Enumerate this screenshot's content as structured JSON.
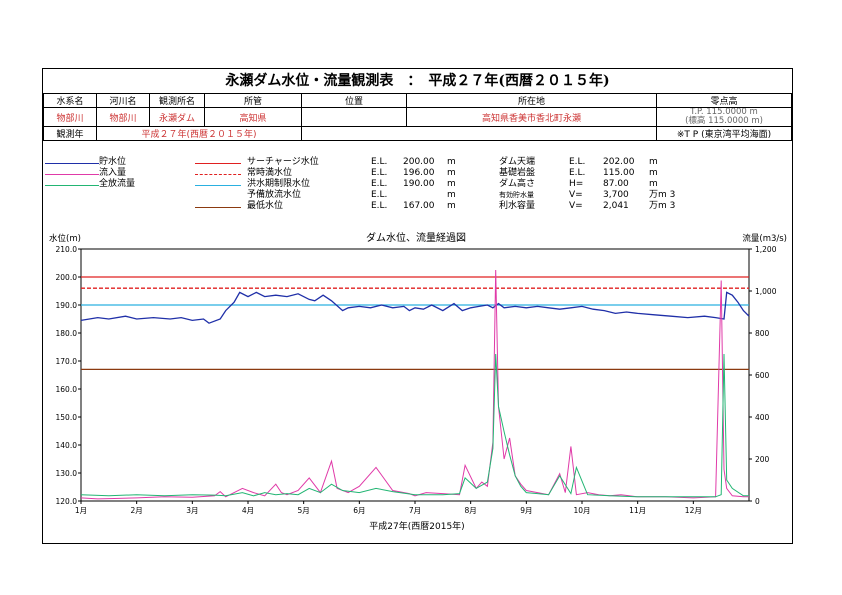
{
  "title": "永瀬ダム水位・流量観測表　：　平成２７年(西暦２０１５年)",
  "header": {
    "col_labels": [
      "水系名",
      "河川名",
      "観測所名",
      "所管",
      "位置",
      "所在地",
      "零点高"
    ],
    "values": [
      "物部川",
      "物部川",
      "永瀬ダム",
      "高知県",
      "",
      "高知県香美市香北町永瀬"
    ],
    "zero_line1": "T.P. 115.0000 m",
    "zero_line2": "(標高 115.0000 m)",
    "year_label": "観測年",
    "year_value": "平成２７年(西暦２０１５年)",
    "tp_note": "※T P (東京湾平均海面)"
  },
  "legend": {
    "series": [
      {
        "label": "貯水位",
        "color": "#1f2fa8"
      },
      {
        "label": "流入量",
        "color": "#e03aa8"
      },
      {
        "label": "全放流量",
        "color": "#22b573"
      }
    ],
    "levels": [
      {
        "label": "サーチャージ水位",
        "color": "#e02020",
        "dash": false,
        "el": "E.L.",
        "value": "200.00",
        "unit": "m"
      },
      {
        "label": "常時満水位",
        "color": "#e02020",
        "dash": true,
        "el": "E.L.",
        "value": "196.00",
        "unit": "m"
      },
      {
        "label": "洪水期制限水位",
        "color": "#2ab0e0",
        "dash": false,
        "el": "E.L.",
        "value": "190.00",
        "unit": "m"
      },
      {
        "label": "予備放流水位",
        "color": "#ffffff",
        "dash": false,
        "el": "E.L.",
        "value": "",
        "unit": "m"
      },
      {
        "label": "最低水位",
        "color": "#8b3a10",
        "dash": false,
        "el": "E.L.",
        "value": "167.00",
        "unit": "m"
      }
    ],
    "specs": [
      {
        "label": "ダム天端",
        "el": "E.L.",
        "value": "202.00",
        "unit": "m"
      },
      {
        "label": "基礎岩盤",
        "el": "E.L.",
        "value": "115.00",
        "unit": "m"
      },
      {
        "label": "ダム高さ",
        "el": "H=",
        "value": "87.00",
        "unit": "m"
      },
      {
        "label": "有効貯水量",
        "el": "V=",
        "value": "3,700",
        "unit": "万m 3"
      },
      {
        "label": "利水容量",
        "el": "V=",
        "value": "2,041",
        "unit": "万m 3"
      }
    ]
  },
  "chart_data": {
    "type": "line",
    "title": "ダム水位、流量経過図",
    "xlabel": "平成27年(西暦2015年)",
    "ylabel_left": "水位(m)",
    "ylabel_right": "流量(m3/s)",
    "xlim_months": [
      0,
      12
    ],
    "x_tick_labels": [
      "1月",
      "2月",
      "3月",
      "4月",
      "5月",
      "6月",
      "7月",
      "8月",
      "9月",
      "10月",
      "11月",
      "12月"
    ],
    "ylim_left": [
      120,
      210
    ],
    "y_ticks_left": [
      "120.0",
      "130.0",
      "140.0",
      "150.0",
      "160.0",
      "170.0",
      "180.0",
      "190.0",
      "200.0",
      "210.0"
    ],
    "ylim_right": [
      0,
      1200
    ],
    "y_ticks_right": [
      "0",
      "200",
      "400",
      "600",
      "800",
      "1,000",
      "1,200"
    ],
    "grid": false,
    "reference_lines": [
      {
        "name": "サーチャージ水位",
        "value": 200,
        "color": "#e02020",
        "dash": false
      },
      {
        "name": "常時満水位",
        "value": 196,
        "color": "#e02020",
        "dash": true
      },
      {
        "name": "洪水期制限水位",
        "value": 190,
        "color": "#2ab0e0",
        "dash": false
      },
      {
        "name": "最低水位",
        "value": 167,
        "color": "#8b3a10",
        "dash": false
      }
    ],
    "series": [
      {
        "name": "貯水位",
        "axis": "left",
        "color": "#1f2fa8",
        "x": [
          0,
          0.3,
          0.5,
          0.8,
          1.0,
          1.3,
          1.6,
          1.8,
          2.0,
          2.2,
          2.3,
          2.5,
          2.6,
          2.75,
          2.85,
          3.0,
          3.15,
          3.3,
          3.5,
          3.7,
          3.9,
          4.1,
          4.2,
          4.35,
          4.5,
          4.7,
          4.8,
          5.0,
          5.2,
          5.4,
          5.6,
          5.8,
          5.9,
          6.0,
          6.15,
          6.3,
          6.5,
          6.7,
          6.85,
          7.0,
          7.15,
          7.3,
          7.4,
          7.5,
          7.6,
          7.8,
          8.0,
          8.2,
          8.4,
          8.6,
          8.8,
          9.0,
          9.2,
          9.4,
          9.6,
          9.8,
          10.0,
          10.3,
          10.6,
          10.9,
          11.2,
          11.4,
          11.55,
          11.6,
          11.7,
          11.8,
          11.9,
          12.0
        ],
        "y": [
          184.5,
          185.5,
          185,
          186,
          185,
          185.5,
          185,
          185.5,
          184.5,
          185,
          183.5,
          185,
          188,
          191,
          194.5,
          193,
          194.5,
          193,
          193.5,
          193,
          194,
          192,
          191.5,
          193.5,
          191.5,
          188,
          189,
          189.5,
          189,
          190,
          189,
          189.5,
          188,
          189,
          188.5,
          190,
          188,
          190.5,
          188,
          189,
          189.5,
          190,
          189,
          190.5,
          189,
          189.5,
          189,
          189.5,
          189,
          188.5,
          189,
          189.5,
          188.5,
          188,
          187,
          187.5,
          187,
          186.5,
          186,
          185.5,
          186,
          185.5,
          185,
          194.5,
          193.5,
          191,
          188,
          186
        ]
      },
      {
        "name": "流入量",
        "axis": "right",
        "color": "#e03aa8",
        "x": [
          0,
          0.3,
          0.6,
          1.0,
          1.5,
          2.0,
          2.4,
          2.5,
          2.6,
          2.9,
          3.1,
          3.3,
          3.5,
          3.6,
          3.7,
          3.9,
          4.1,
          4.3,
          4.5,
          4.6,
          4.8,
          5.0,
          5.3,
          5.6,
          5.9,
          6.0,
          6.2,
          6.5,
          6.8,
          6.9,
          7.1,
          7.2,
          7.3,
          7.4,
          7.45,
          7.5,
          7.6,
          7.7,
          7.8,
          7.9,
          8.0,
          8.2,
          8.4,
          8.6,
          8.7,
          8.8,
          8.9,
          9.1,
          9.3,
          9.5,
          9.7,
          10.0,
          10.5,
          11.0,
          11.4,
          11.5,
          11.55,
          11.6,
          11.7,
          11.9,
          12.0
        ],
        "y": [
          15,
          10,
          12,
          15,
          20,
          18,
          25,
          45,
          20,
          60,
          40,
          25,
          80,
          40,
          30,
          50,
          110,
          40,
          190,
          60,
          40,
          70,
          160,
          50,
          35,
          25,
          40,
          35,
          30,
          170,
          60,
          90,
          70,
          280,
          1100,
          450,
          200,
          300,
          120,
          80,
          50,
          40,
          30,
          130,
          40,
          260,
          30,
          40,
          30,
          25,
          30,
          20,
          20,
          15,
          20,
          1050,
          150,
          60,
          25,
          20,
          20
        ]
      },
      {
        "name": "全放流量",
        "axis": "right",
        "color": "#22b573",
        "x": [
          0,
          0.5,
          1.0,
          1.5,
          2.0,
          2.4,
          2.6,
          2.9,
          3.1,
          3.3,
          3.5,
          3.7,
          3.9,
          4.1,
          4.3,
          4.5,
          4.7,
          5.0,
          5.3,
          5.6,
          6.0,
          6.5,
          6.8,
          6.9,
          7.1,
          7.3,
          7.4,
          7.45,
          7.5,
          7.6,
          7.7,
          7.8,
          7.9,
          8.0,
          8.2,
          8.4,
          8.6,
          8.8,
          8.9,
          9.1,
          9.5,
          10.0,
          10.5,
          11.0,
          11.4,
          11.5,
          11.55,
          11.6,
          11.7,
          11.9,
          12.0
        ],
        "y": [
          30,
          25,
          30,
          25,
          30,
          28,
          25,
          40,
          25,
          40,
          30,
          35,
          30,
          60,
          40,
          80,
          50,
          40,
          60,
          45,
          30,
          30,
          35,
          110,
          60,
          90,
          250,
          700,
          450,
          330,
          220,
          120,
          70,
          40,
          35,
          30,
          120,
          35,
          160,
          30,
          25,
          20,
          20,
          20,
          20,
          30,
          700,
          100,
          60,
          25,
          25
        ]
      }
    ]
  }
}
